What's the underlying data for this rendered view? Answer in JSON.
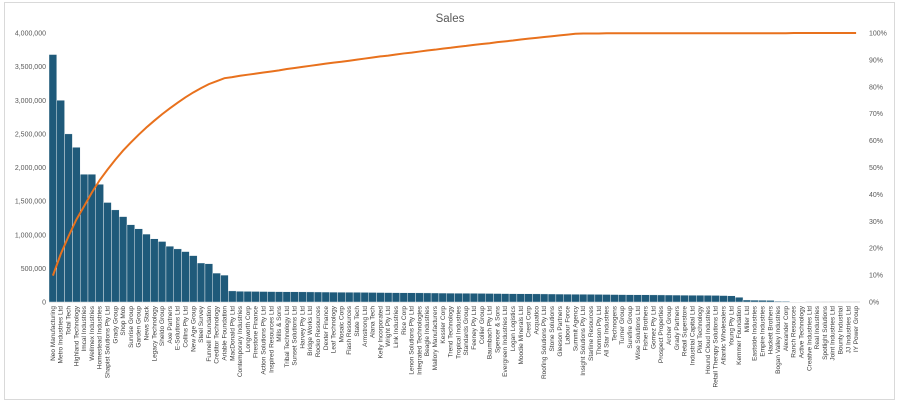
{
  "chart_data": {
    "type": "bar",
    "title": "Sales",
    "xlabel": "",
    "ylabel": "",
    "ylim": [
      0,
      4000000
    ],
    "y_ticks": [
      "0",
      "500,000",
      "1,000,000",
      "1,500,000",
      "2,000,000",
      "2,500,000",
      "3,000,000",
      "3,500,000",
      "4,000,000"
    ],
    "y2lim": [
      0,
      100
    ],
    "y2_ticks": [
      "0%",
      "10%",
      "20%",
      "30%",
      "40%",
      "50%",
      "60%",
      "70%",
      "80%",
      "90%",
      "100%"
    ],
    "grid": false,
    "categories": [
      "Neo Manufacturing",
      "Metro Industries Ltd",
      "Total Tech",
      "Highland Technology",
      "Imcal Industries",
      "Wellmex Industries",
      "Homestead Industries",
      "Shapist Solutions Pty Ltd",
      "Grady Group",
      "Shop Mob",
      "Sunrise Group",
      "Garden Group",
      "News Stack",
      "Legacy Technology",
      "Sheldo Group",
      "Axe Partners",
      "E-Solutions Ltd",
      "Collins Pty Ltd",
      "New Age Group",
      "Steel Survey",
      "Funnell Foundation",
      "Creditor Technology",
      "Ariable Foundation",
      "MacDonald Pty Ltd",
      "Contemporary Industries",
      "Longworth Corp",
      "Firestone Finance",
      "Action Solutions Pty Ltd",
      "Inspired Resources Ltd",
      "Mills & Sons",
      "Tribal Technology Ltd",
      "Sunset Solutions Ltd",
      "Harvey Pty Ltd",
      "Bridge Works Ltd",
      "Rocko Resources",
      "Dexter Finance",
      "Leaf Technology",
      "Mosaic Corp",
      "Flash Resources",
      "State Tech",
      "Armstrong Ltd",
      "Alana Tech",
      "Kelly Incorporated",
      "Wright Pty Ltd",
      "Link Industries",
      "Rice Corp",
      "Lenon Solutions Pty Ltd",
      "Integrated Technologies",
      "Beagle Industries",
      "Mallory Manufacturers",
      "Kessler Corp",
      "Trend Technology",
      "Tropical Industries",
      "Standards Group",
      "Feeney Pty Ltd",
      "Collier Group",
      "Baumbach Pty Ltd",
      "Spencer & Sons",
      "Evergreen Industries Ltd",
      "Logan Logistics",
      "Moodie Minerals Ltd",
      "Crest Corp",
      "Acquatico",
      "Roofing Solutions Pty Ltd",
      "Stone Solutions",
      "Gleeson Partners",
      "Labour Force",
      "Summit Agency",
      "Insight Solutions Pty Ltd",
      "Starline Resources",
      "Thomson Pty Ltd",
      "All Star Industries",
      "Technogens",
      "Turner Group",
      "Surefire Group",
      "Wise Solutions Ltd",
      "Fisher Brothers",
      "Gomez Pty Ltd",
      "Prospect Properties",
      "Archer Group",
      "Grady Partners",
      "Retail Superstore",
      "Industrial Capital Ltd",
      "Pilot Technology",
      "Hound Cloud Industries",
      "Retail Therapy Solutions Ltd",
      "Atlantic Wholesalers",
      "Young Pty Ltd",
      "Kemmer Foundation",
      "Miller Ltd",
      "Eastside Industries",
      "Empire Industries",
      "Hackett Brothers",
      "Bogan Valley Industries",
      "Alexander Corp",
      "Ranch Resources",
      "Active Technology",
      "Creative Industries Ltd",
      "Real Industries",
      "Spotlight Solutions",
      "Joint Industries Ltd",
      "Bounty Industrial",
      "JJ Industries Ltd",
      "IY Power Group"
    ],
    "series": [
      {
        "name": "Sales",
        "axis": "left",
        "values": [
          3680000,
          3000000,
          2500000,
          2300000,
          1900000,
          1900000,
          1750000,
          1480000,
          1370000,
          1270000,
          1150000,
          1090000,
          1010000,
          940000,
          900000,
          830000,
          790000,
          750000,
          690000,
          580000,
          570000,
          430000,
          400000,
          165000,
          160000,
          158000,
          157000,
          156000,
          155000,
          154000,
          153000,
          152000,
          151000,
          150000,
          149000,
          148000,
          147000,
          146000,
          145000,
          144000,
          143000,
          142000,
          141000,
          140000,
          139000,
          138000,
          137000,
          136000,
          135000,
          134000,
          133000,
          132000,
          131000,
          130000,
          129000,
          128000,
          127000,
          126000,
          125000,
          124000,
          123000,
          122000,
          121000,
          120000,
          119000,
          118000,
          117000,
          116000,
          115000,
          114000,
          113000,
          112000,
          111000,
          110000,
          109000,
          108000,
          107000,
          106000,
          105000,
          104000,
          103000,
          102000,
          101000,
          100000,
          99000,
          98000,
          96000,
          92000,
          70000,
          30000,
          28000,
          26000,
          24000,
          12000,
          10000,
          6000,
          4000,
          2000,
          1500,
          1000,
          700,
          500,
          300,
          100
        ]
      },
      {
        "name": "Cumulative %",
        "axis": "right",
        "type": "line",
        "values": [
          9.8,
          17.8,
          24.4,
          30.6,
          35.6,
          40.7,
          45.3,
          49.2,
          52.9,
          56.3,
          59.3,
          62.2,
          64.9,
          67.4,
          69.8,
          72.0,
          74.1,
          76.1,
          77.9,
          79.5,
          81.0,
          82.1,
          83.2,
          83.6,
          84.1,
          84.5,
          84.9,
          85.3,
          85.7,
          86.1,
          86.6,
          87.0,
          87.4,
          87.8,
          88.2,
          88.6,
          89.0,
          89.3,
          89.7,
          90.1,
          90.5,
          90.9,
          91.3,
          91.6,
          92.0,
          92.4,
          92.7,
          93.1,
          93.5,
          93.8,
          94.2,
          94.5,
          94.9,
          95.2,
          95.6,
          95.9,
          96.2,
          96.6,
          96.9,
          97.2,
          97.6,
          97.9,
          98.2,
          98.5,
          98.8,
          99.1,
          99.4,
          99.7,
          99.8,
          99.8,
          99.8,
          99.9,
          99.9,
          99.9,
          99.9,
          99.9,
          99.9,
          99.9,
          99.9,
          99.9,
          99.9,
          99.9,
          99.9,
          99.9,
          99.9,
          99.9,
          99.9,
          99.9,
          99.9,
          99.9,
          99.9,
          99.9,
          99.9,
          99.9,
          99.9,
          100,
          100,
          100,
          100,
          100,
          100,
          100,
          100,
          100
        ]
      }
    ]
  }
}
